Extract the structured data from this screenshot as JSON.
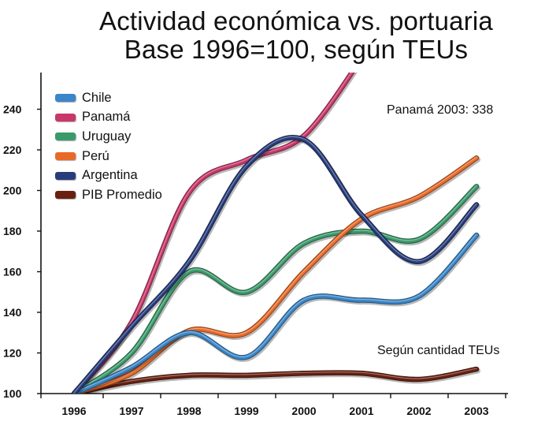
{
  "chart_data": {
    "type": "line",
    "title": "Actividad económica vs. portuaria",
    "subtitle": "Base 1996=100, según TEUs",
    "x": [
      "1996",
      "1997",
      "1998",
      "1999",
      "2000",
      "2001",
      "2002",
      "2003"
    ],
    "ylim": [
      100,
      250
    ],
    "yticks": [
      100,
      120,
      140,
      160,
      180,
      200,
      220,
      240
    ],
    "grid": false,
    "legend_position": "top-left",
    "series": [
      {
        "name": "Chile",
        "color": "#3a86c8",
        "values": [
          100,
          113,
          130,
          118,
          146,
          146,
          148,
          178
        ]
      },
      {
        "name": "Panamá",
        "color": "#c8386a",
        "values": [
          100,
          135,
          199,
          215,
          227,
          265,
          null,
          null
        ]
      },
      {
        "name": "Uruguay",
        "color": "#3a9a6a",
        "values": [
          100,
          120,
          160,
          150,
          174,
          180,
          176,
          202
        ]
      },
      {
        "name": "Perú",
        "color": "#e86a28",
        "values": [
          100,
          110,
          131,
          130,
          160,
          186,
          197,
          216
        ]
      },
      {
        "name": "Argentina",
        "color": "#283c7c",
        "values": [
          100,
          133,
          165,
          212,
          225,
          188,
          165,
          193
        ]
      },
      {
        "name": "PIB Promedio",
        "color": "#6a2010",
        "values": [
          100,
          106,
          109,
          109,
          110,
          110,
          107,
          112
        ]
      }
    ],
    "annotations": [
      "Panamá 2003: 338",
      "Según cantidad TEUs"
    ]
  }
}
